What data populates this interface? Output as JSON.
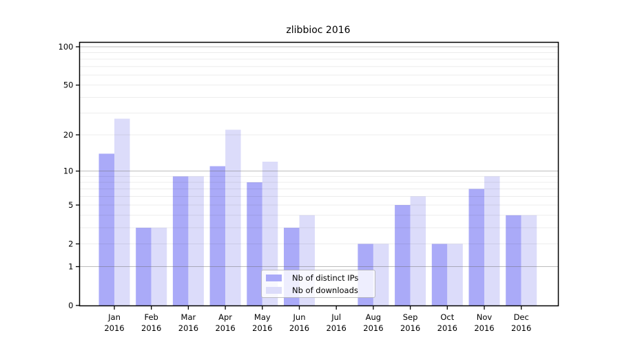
{
  "chart_data": {
    "type": "bar",
    "title": "zlibbioc 2016",
    "categories": [
      "Jan 2016",
      "Feb 2016",
      "Mar 2016",
      "Apr 2016",
      "May 2016",
      "Jun 2016",
      "Jul 2016",
      "Aug 2016",
      "Sep 2016",
      "Oct 2016",
      "Nov 2016",
      "Dec 2016"
    ],
    "series": [
      {
        "name": "Nb of distinct IPs",
        "color": "#aaaaf8",
        "values": [
          14,
          3,
          9,
          11,
          8,
          3,
          0,
          2,
          5,
          2,
          7,
          4
        ]
      },
      {
        "name": "Nb of downloads",
        "color": "#dcdcfa",
        "values": [
          27,
          3,
          9,
          22,
          12,
          4,
          0,
          2,
          6,
          2,
          9,
          4
        ]
      }
    ],
    "yscale": "log1p",
    "yticks": [
      0,
      1,
      2,
      5,
      10,
      20,
      50,
      100
    ],
    "ylim": [
      0,
      100
    ],
    "grid": {
      "visible": true,
      "drawn_over_bars": true,
      "major_levels": [
        1,
        10,
        100
      ],
      "minor_levels": [
        2,
        3,
        4,
        5,
        6,
        7,
        8,
        9,
        20,
        30,
        40,
        50,
        60,
        70,
        80,
        90
      ],
      "major_color": "#c6c6c6",
      "minor_color": "#ededed"
    },
    "legend": {
      "position": "lower-center"
    },
    "colors": {
      "axis": "#000000",
      "background": "#ffffff",
      "text": "#000000"
    }
  }
}
